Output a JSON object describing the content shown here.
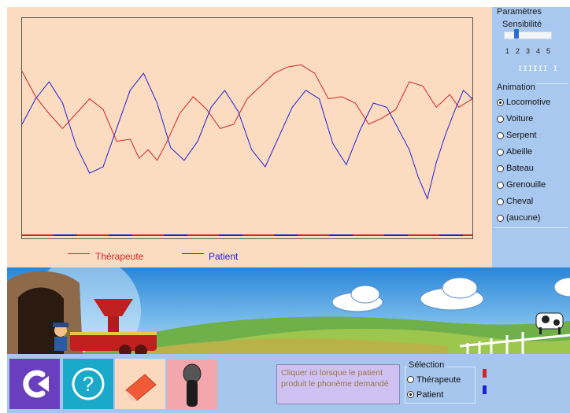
{
  "legend": {
    "therapist_label": "Thérapeute",
    "patient_label": "Patient",
    "therapist_color": "#d02525",
    "patient_color": "#1f1fd6"
  },
  "params": {
    "title": "Paramètres",
    "sensitivity_label": "Sensibilité",
    "sensitivity_scale": [
      "1",
      "2",
      "3",
      "4",
      "5"
    ],
    "sensitivity_value": 2,
    "animation_title": "Animation",
    "animations": [
      {
        "label": "Locomotive",
        "selected": true
      },
      {
        "label": "Voiture",
        "selected": false
      },
      {
        "label": "Serpent",
        "selected": false
      },
      {
        "label": "Abeille",
        "selected": false
      },
      {
        "label": "Bateau",
        "selected": false
      },
      {
        "label": "Grenouille",
        "selected": false
      },
      {
        "label": "Cheval",
        "selected": false
      },
      {
        "label": "(aucune)",
        "selected": false
      }
    ]
  },
  "toolbar": {
    "prompt_text": "Cliquer ici lorsque le patient produit le phonème demandé",
    "selection_title": "Sélection",
    "selection_options": [
      {
        "label": "Thérapeute",
        "selected": false
      },
      {
        "label": "Patient",
        "selected": true
      }
    ],
    "icons": [
      "restart-icon",
      "help-icon",
      "eraser-icon",
      "microphone-icon"
    ]
  },
  "colors": {
    "chart_bg": "#fbdcc0",
    "panel_bg": "#a9c8ef",
    "button_restart": "#6a3fbf",
    "button_help": "#1aa9c9",
    "button_eraser": "#fbd9bd",
    "button_mic": "#f3a6ab"
  },
  "chart_data": {
    "type": "line",
    "xlim": [
      0,
      100
    ],
    "ylim": [
      0,
      100
    ],
    "series": [
      {
        "name": "Thérapeute",
        "color": "#d02525",
        "x": [
          0,
          3,
          6,
          9,
          12,
          15,
          18,
          21,
          24,
          26,
          28,
          30,
          32,
          35,
          38,
          41,
          44,
          47,
          50,
          53,
          56,
          59,
          62,
          65,
          68,
          71,
          74,
          77,
          80,
          83,
          86,
          89,
          92,
          95,
          97,
          100
        ],
        "y": [
          75,
          63,
          55,
          48,
          55,
          62,
          57,
          42,
          43,
          34,
          38,
          33,
          41,
          55,
          63,
          57,
          48,
          50,
          62,
          68,
          74,
          77,
          78,
          74,
          62,
          63,
          60,
          50,
          53,
          57,
          70,
          68,
          58,
          64,
          58,
          62
        ]
      },
      {
        "name": "Patient",
        "color": "#1f1fd6",
        "x": [
          0,
          3,
          6,
          9,
          12,
          15,
          18,
          21,
          24,
          27,
          30,
          33,
          36,
          39,
          42,
          45,
          48,
          51,
          54,
          57,
          60,
          63,
          66,
          69,
          72,
          75,
          78,
          81,
          84,
          86,
          88,
          90,
          92,
          94,
          96,
          98,
          100
        ],
        "y": [
          50,
          62,
          70,
          60,
          40,
          27,
          30,
          48,
          66,
          74,
          60,
          39,
          33,
          42,
          58,
          66,
          56,
          38,
          30,
          44,
          58,
          66,
          62,
          41,
          31,
          47,
          60,
          58,
          46,
          38,
          25,
          15,
          32,
          45,
          56,
          66,
          62
        ]
      }
    ]
  }
}
